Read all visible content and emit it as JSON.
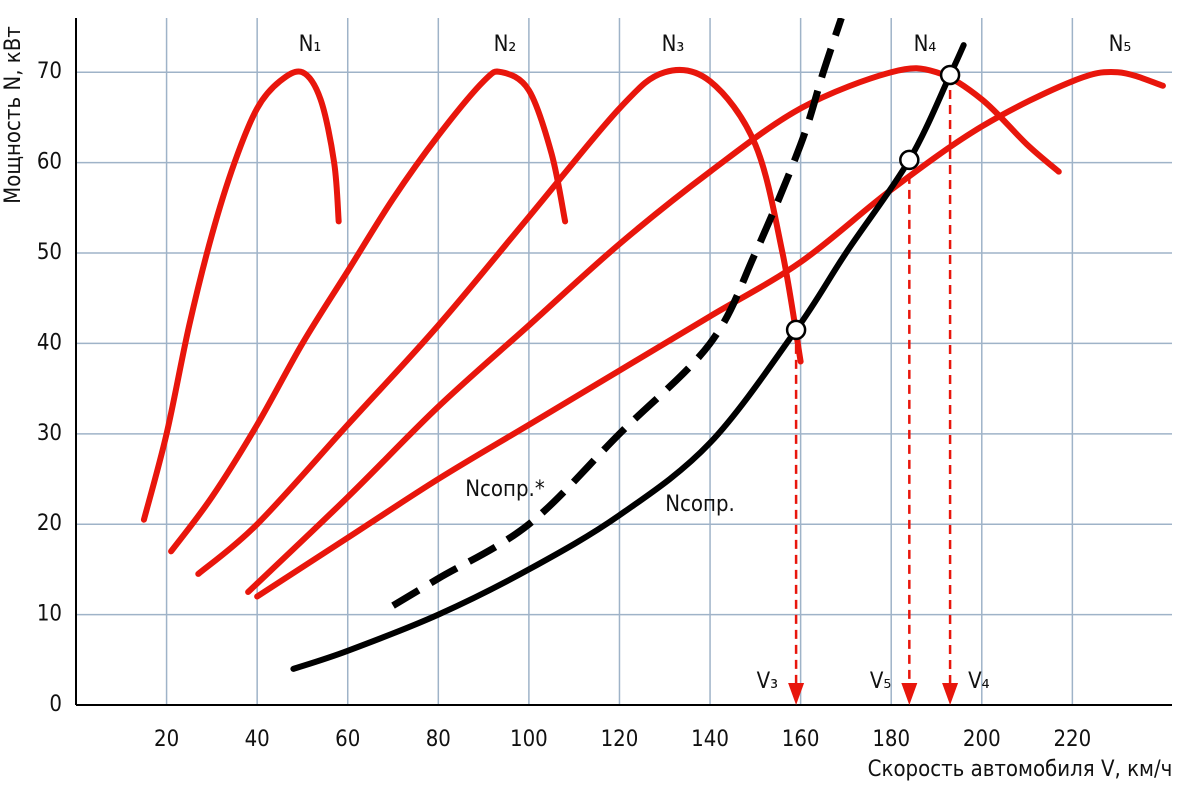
{
  "chart_data": {
    "type": "line",
    "x_label": "Скорость автомобиля V, км/ч",
    "y_label": "Мощность N, кВт",
    "xlim": [
      0,
      242
    ],
    "ylim": [
      0,
      76
    ],
    "xticks": [
      20,
      40,
      60,
      80,
      100,
      120,
      140,
      160,
      180,
      200,
      220
    ],
    "yticks": [
      0,
      10,
      20,
      30,
      40,
      50,
      60,
      70
    ],
    "grid": true,
    "series": [
      {
        "name": "N₁",
        "color": "#e8160c",
        "dashed": false,
        "x": [
          15,
          20,
          25,
          30,
          35,
          40,
          45,
          50,
          54,
          57,
          58
        ],
        "values": [
          20.5,
          30,
          42,
          52,
          60,
          66,
          69,
          70,
          67,
          60,
          53.5
        ]
      },
      {
        "name": "N₂",
        "color": "#e8160c",
        "dashed": false,
        "x": [
          21,
          30,
          40,
          50,
          60,
          70,
          80,
          90,
          94,
          100,
          105,
          108
        ],
        "values": [
          17,
          23,
          31,
          40,
          48,
          56,
          63,
          69,
          70,
          68,
          61,
          53.5
        ]
      },
      {
        "name": "N₃",
        "color": "#e8160c",
        "dashed": false,
        "x": [
          27,
          40,
          60,
          80,
          100,
          120,
          130,
          140,
          150,
          156,
          160
        ],
        "values": [
          14.5,
          20,
          31,
          42,
          54,
          66,
          70,
          69,
          62,
          50,
          38
        ]
      },
      {
        "name": "N₄",
        "color": "#e8160c",
        "dashed": false,
        "x": [
          38,
          60,
          80,
          100,
          120,
          140,
          160,
          180,
          190,
          200,
          210,
          217
        ],
        "values": [
          12.5,
          23,
          33,
          42,
          51,
          59,
          66,
          70,
          70,
          67,
          62,
          59
        ]
      },
      {
        "name": "N₅",
        "color": "#e8160c",
        "dashed": false,
        "x": [
          40,
          60,
          80,
          100,
          120,
          140,
          160,
          180,
          200,
          220,
          230,
          240
        ],
        "values": [
          12,
          18.5,
          25,
          31,
          37,
          43,
          49,
          57,
          64,
          69,
          70,
          68.5
        ]
      },
      {
        "name": "Nсопр.",
        "color": "#000000",
        "dashed": false,
        "x": [
          48,
          60,
          80,
          100,
          120,
          140,
          159,
          170,
          184,
          193,
          196
        ],
        "values": [
          4,
          6,
          10,
          15,
          21,
          29,
          41.5,
          50,
          60.3,
          69.7,
          73
        ]
      },
      {
        "name": "Nсопр.*",
        "color": "#000000",
        "dashed": true,
        "x": [
          70,
          80,
          100,
          120,
          140,
          150,
          160,
          165,
          169
        ],
        "values": [
          11,
          14,
          20,
          30,
          40,
          50,
          62,
          70,
          76
        ]
      }
    ],
    "points": [
      {
        "x": 159,
        "y": 41.5,
        "label": "V₃"
      },
      {
        "x": 184,
        "y": 60.3,
        "label": "V₅"
      },
      {
        "x": 193,
        "y": 69.7,
        "label": "V₄"
      }
    ]
  }
}
